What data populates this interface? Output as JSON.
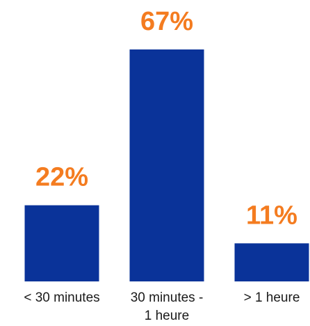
{
  "chart_data": {
    "type": "bar",
    "categories": [
      "< 30 minutes",
      "30 minutes - 1 heure",
      "> 1 heure"
    ],
    "category_label_lines": [
      [
        "< 30 minutes"
      ],
      [
        "30 minutes -",
        "1 heure"
      ],
      [
        "> 1 heure"
      ]
    ],
    "values": [
      22,
      67,
      11
    ],
    "value_labels": [
      "22%",
      "67%",
      "11%"
    ],
    "ylim": [
      0,
      67
    ],
    "grid": false,
    "legend": "none",
    "title": "",
    "xlabel": "",
    "ylabel": ""
  },
  "colors": {
    "bar": "#0a3399",
    "value_label": "#f47c20"
  }
}
